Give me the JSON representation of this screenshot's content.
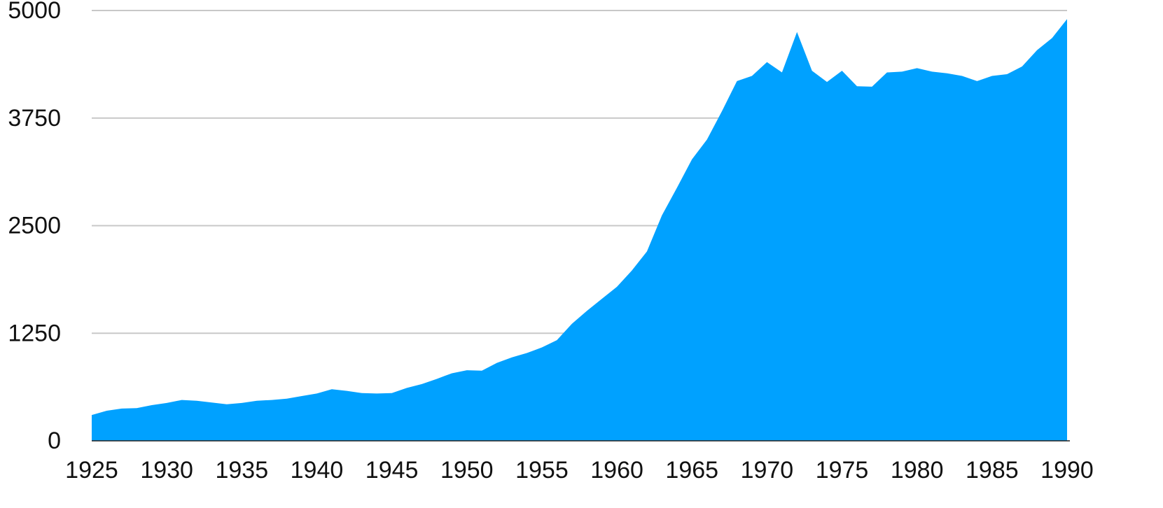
{
  "chart_data": {
    "type": "area",
    "title": "",
    "xlabel": "",
    "ylabel": "",
    "xlim": [
      1925,
      1990
    ],
    "ylim": [
      0,
      5000
    ],
    "grid": true,
    "legend": "none",
    "color": "#00A1FF",
    "x_ticks": [
      "1925",
      "1930",
      "1935",
      "1940",
      "1945",
      "1950",
      "1955",
      "1960",
      "1965",
      "1970",
      "1975",
      "1980",
      "1985",
      "1990"
    ],
    "y_ticks": [
      "0",
      "1250",
      "2500",
      "3750",
      "5000"
    ],
    "x": [
      1925,
      1926,
      1927,
      1928,
      1929,
      1930,
      1931,
      1932,
      1933,
      1934,
      1935,
      1936,
      1937,
      1938,
      1939,
      1940,
      1941,
      1942,
      1943,
      1944,
      1945,
      1946,
      1947,
      1948,
      1949,
      1950,
      1951,
      1952,
      1953,
      1954,
      1955,
      1956,
      1957,
      1958,
      1959,
      1960,
      1961,
      1962,
      1963,
      1964,
      1965,
      1966,
      1967,
      1968,
      1969,
      1970,
      1971,
      1972,
      1973,
      1974,
      1975,
      1976,
      1977,
      1978,
      1979,
      1980,
      1981,
      1982,
      1983,
      1984,
      1985,
      1986,
      1987,
      1988,
      1989,
      1990
    ],
    "series": [
      {
        "values": [
          300,
          350,
          375,
          380,
          415,
          440,
          475,
          465,
          445,
          425,
          440,
          465,
          475,
          490,
          520,
          550,
          600,
          580,
          555,
          550,
          555,
          615,
          660,
          720,
          785,
          820,
          815,
          905,
          970,
          1020,
          1085,
          1170,
          1360,
          1510,
          1650,
          1790,
          1980,
          2200,
          2620,
          2940,
          3270,
          3500,
          3830,
          4180,
          4240,
          4400,
          4280,
          4750,
          4300,
          4170,
          4300,
          4120,
          4115,
          4280,
          4290,
          4330,
          4290,
          4270,
          4240,
          4180,
          4240,
          4260,
          4350,
          4540,
          4680,
          4900
        ]
      }
    ]
  }
}
